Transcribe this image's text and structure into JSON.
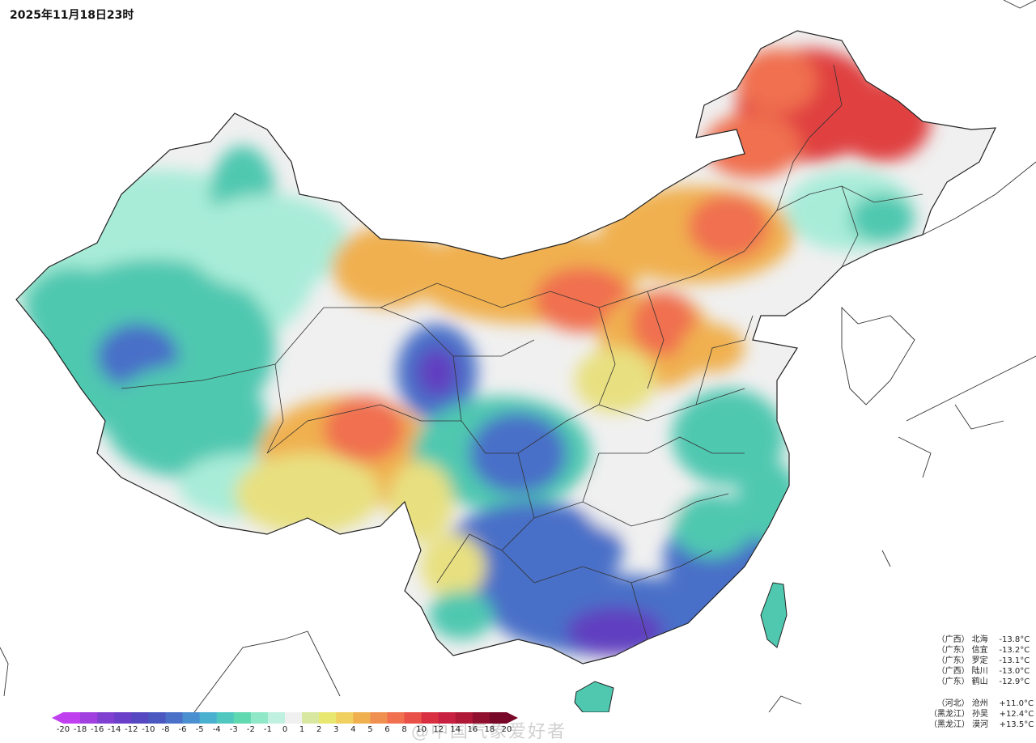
{
  "title": "2025年11月18日23时",
  "watermark": "@中国气象爱好者",
  "stations": {
    "lowest": [
      {
        "province": "（广西）",
        "name": "北海",
        "value": "-13.8°C"
      },
      {
        "province": "（广东）",
        "name": "信宜",
        "value": "-13.2°C"
      },
      {
        "province": "（广东）",
        "name": "罗定",
        "value": "-13.1°C"
      },
      {
        "province": "（广西）",
        "name": "陆川",
        "value": "-13.0°C"
      },
      {
        "province": "（广东）",
        "name": "鹤山",
        "value": "-12.9°C"
      }
    ],
    "highest": [
      {
        "province": "（河北）",
        "name": "沧州",
        "value": "+11.0°C"
      },
      {
        "province": "（黑龙江）",
        "name": "孙吴",
        "value": "+12.4°C"
      },
      {
        "province": "（黑龙江）",
        "name": "漠河",
        "value": "+13.5°C"
      }
    ]
  },
  "colorbar": {
    "labels": [
      "-20",
      "-18",
      "-16",
      "-14",
      "-12",
      "-10",
      "-8",
      "-6",
      "-5",
      "-4",
      "-3",
      "-2",
      "-1",
      "0",
      "1",
      "2",
      "3",
      "4",
      "5",
      "6",
      "8",
      "10",
      "12",
      "14",
      "16",
      "18",
      "20"
    ],
    "colors": [
      "#c040f0",
      "#a040e0",
      "#8040d0",
      "#6a40c8",
      "#5548c0",
      "#4a58c0",
      "#4a70c8",
      "#4a90d0",
      "#4ab0d0",
      "#50c8c0",
      "#60d8b0",
      "#90e8c8",
      "#c0f0e0",
      "#f0f0f0",
      "#d8e8a0",
      "#e8e870",
      "#f0d060",
      "#f0b050",
      "#f09050",
      "#f07050",
      "#e85048",
      "#d83040",
      "#c82040",
      "#b01838",
      "#901030",
      "#780828"
    ]
  },
  "map_colors": {
    "cold_deep": "#6040c0",
    "cold": "#4a70c8",
    "cool": "#50c8b0",
    "mild": "#a8ecd8",
    "neutral": "#f0f0f0",
    "warm_light": "#e8e080",
    "warm": "#f0b050",
    "hot": "#f07050",
    "very_hot": "#e04040"
  }
}
